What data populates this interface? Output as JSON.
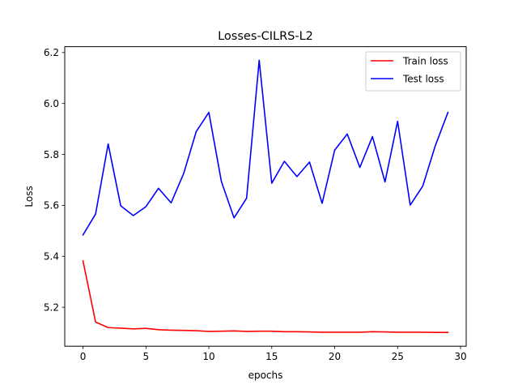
{
  "chart_data": {
    "type": "line",
    "title": "Losses-CILRS-L2",
    "xlabel": "epochs",
    "ylabel": "Loss",
    "xlim": [
      -1.45,
      30.45
    ],
    "ylim": [
      5.047,
      6.223
    ],
    "xticks": [
      0,
      5,
      10,
      15,
      20,
      25,
      30
    ],
    "yticks": [
      5.2,
      5.4,
      5.6,
      5.8,
      6.0,
      6.2
    ],
    "ytick_labels": [
      "5.2",
      "5.4",
      "5.6",
      "5.8",
      "6.0",
      "6.2"
    ],
    "grid": false,
    "legend_position": "top-right",
    "x": [
      0,
      1,
      2,
      3,
      4,
      5,
      6,
      7,
      8,
      9,
      10,
      11,
      12,
      13,
      14,
      15,
      16,
      17,
      18,
      19,
      20,
      21,
      22,
      23,
      24,
      25,
      26,
      27,
      28,
      29
    ],
    "series": [
      {
        "name": "Train loss",
        "color": "#ff0000",
        "values": [
          5.382,
          5.142,
          5.12,
          5.118,
          5.115,
          5.117,
          5.112,
          5.11,
          5.109,
          5.108,
          5.105,
          5.106,
          5.107,
          5.105,
          5.106,
          5.106,
          5.104,
          5.104,
          5.103,
          5.102,
          5.102,
          5.102,
          5.102,
          5.104,
          5.103,
          5.102,
          5.102,
          5.102,
          5.101,
          5.101
        ]
      },
      {
        "name": "Test loss",
        "color": "#0000ff",
        "values": [
          5.484,
          5.566,
          5.841,
          5.598,
          5.56,
          5.595,
          5.667,
          5.61,
          5.725,
          5.89,
          5.965,
          5.693,
          5.551,
          5.628,
          6.17,
          5.687,
          5.773,
          5.713,
          5.77,
          5.608,
          5.817,
          5.88,
          5.749,
          5.87,
          5.692,
          5.93,
          5.601,
          5.676,
          5.835,
          5.965
        ]
      }
    ]
  }
}
